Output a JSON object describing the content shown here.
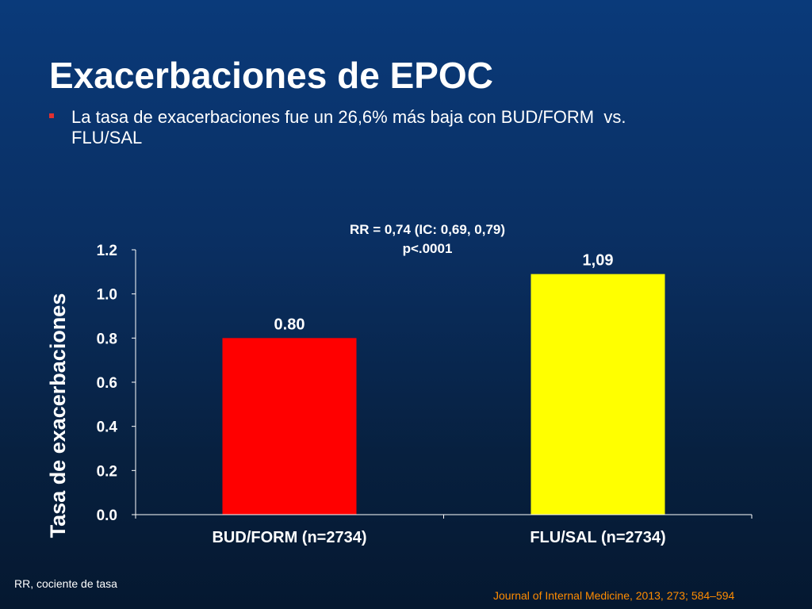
{
  "slide": {
    "title": "Exacerbaciones de EPOC",
    "bullet": "La tasa de exacerbaciones fue un 26,6% más baja con BUD/FORM  vs.\nFLU/SAL",
    "footnote": "RR, cociente de tasa",
    "citation": "Journal of Internal Medicine, 2013, 273; 584–594"
  },
  "colors": {
    "bud_form_bar": "#ff0000",
    "flu_sal_bar": "#ffff00",
    "citation": "#ff8c00",
    "bullet_marker": "#e03030"
  },
  "chart_data": {
    "type": "bar",
    "categories": [
      "BUD/FORM (n=2734)",
      "FLU/SAL (n=2734)"
    ],
    "values": [
      0.8,
      1.09
    ],
    "value_labels": [
      "0.80",
      "1,09"
    ],
    "bar_colors": [
      "#ff0000",
      "#ffff00"
    ],
    "ylabel": "Tasa de exacerbaciones",
    "ylim": [
      0,
      1.2
    ],
    "yticks": [
      0.0,
      0.2,
      0.4,
      0.6,
      0.8,
      1.0,
      1.2
    ],
    "ytick_labels": [
      "0.0",
      "0.2",
      "0.4",
      "0.6",
      "0.8",
      "1.0",
      "1.2"
    ],
    "annotation_lines": [
      "RR = 0,74 (IC: 0,69, 0,79)",
      "p<.0001"
    ],
    "grid": false
  }
}
